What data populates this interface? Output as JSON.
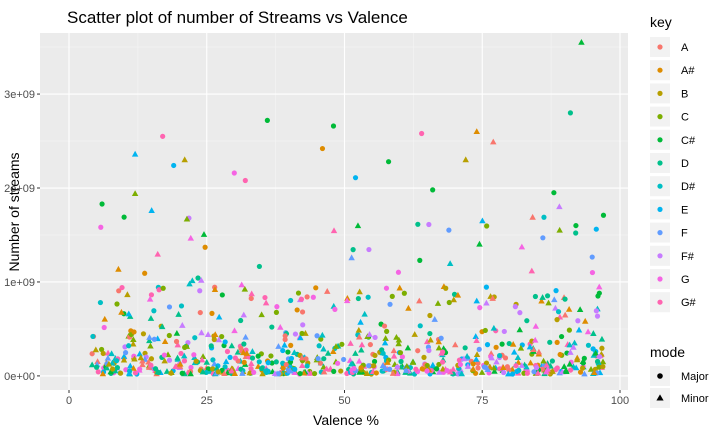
{
  "chart_data": {
    "type": "scatter",
    "title": "Scatter plot of number of Streams vs Valence",
    "xlabel": "Valence %",
    "ylabel": "Number of streams",
    "xlim": [
      0,
      100
    ],
    "ylim": [
      -150000000,
      3650000000
    ],
    "x_ticks": [
      0,
      25,
      50,
      75,
      100
    ],
    "x_tick_labels": [
      "0",
      "25",
      "50",
      "75",
      "100"
    ],
    "y_ticks": [
      0,
      1000000000,
      2000000000,
      3000000000
    ],
    "y_tick_labels": [
      "0e+00",
      "1e+09",
      "2e+09",
      "3e+09"
    ],
    "grid": true,
    "panel_background": "#ebebeb",
    "legend_position": "right",
    "color_legend": {
      "title": "key",
      "entries": [
        {
          "label": "A",
          "color": "#F8766D"
        },
        {
          "label": "A#",
          "color": "#DE8C00"
        },
        {
          "label": "B",
          "color": "#B79F00"
        },
        {
          "label": "C",
          "color": "#7CAE00"
        },
        {
          "label": "C#",
          "color": "#00BA38"
        },
        {
          "label": "D",
          "color": "#00C08B"
        },
        {
          "label": "D#",
          "color": "#00BFC4"
        },
        {
          "label": "E",
          "color": "#00B4F0"
        },
        {
          "label": "F",
          "color": "#619CFF"
        },
        {
          "label": "F#",
          "color": "#C77CFF"
        },
        {
          "label": "G",
          "color": "#F564E3"
        },
        {
          "label": "G#",
          "color": "#FF64B0"
        }
      ]
    },
    "shape_legend": {
      "title": "mode",
      "entries": [
        {
          "label": "Major",
          "shape": "circle"
        },
        {
          "label": "Minor",
          "shape": "triangle"
        }
      ]
    },
    "notable_points": [
      {
        "x": 93,
        "y": 3550000000,
        "key": "C#",
        "mode": "Minor"
      },
      {
        "x": 36,
        "y": 2720000000,
        "key": "C#",
        "mode": "Major"
      },
      {
        "x": 48,
        "y": 2660000000,
        "key": "C#",
        "mode": "Major"
      },
      {
        "x": 91,
        "y": 2800000000,
        "key": "D",
        "mode": "Major"
      },
      {
        "x": 74,
        "y": 2600000000,
        "key": "A#",
        "mode": "Minor"
      },
      {
        "x": 64,
        "y": 2580000000,
        "key": "G#",
        "mode": "Major"
      },
      {
        "x": 17,
        "y": 2550000000,
        "key": "G#",
        "mode": "Major"
      },
      {
        "x": 77,
        "y": 2490000000,
        "key": "A",
        "mode": "Minor"
      },
      {
        "x": 46,
        "y": 2420000000,
        "key": "A#",
        "mode": "Major"
      },
      {
        "x": 12,
        "y": 2360000000,
        "key": "E",
        "mode": "Minor"
      },
      {
        "x": 21,
        "y": 2300000000,
        "key": "B",
        "mode": "Minor"
      },
      {
        "x": 72,
        "y": 2300000000,
        "key": "B",
        "mode": "Minor"
      },
      {
        "x": 58,
        "y": 2280000000,
        "key": "C#",
        "mode": "Major"
      },
      {
        "x": 19,
        "y": 2240000000,
        "key": "E",
        "mode": "Major"
      },
      {
        "x": 30,
        "y": 2160000000,
        "key": "G",
        "mode": "Major"
      },
      {
        "x": 52,
        "y": 2110000000,
        "key": "E",
        "mode": "Major"
      },
      {
        "x": 32,
        "y": 2080000000,
        "key": "G#",
        "mode": "Major"
      },
      {
        "x": 66,
        "y": 1980000000,
        "key": "C#",
        "mode": "Major"
      },
      {
        "x": 88,
        "y": 1950000000,
        "key": "C#",
        "mode": "Major"
      },
      {
        "x": 12,
        "y": 1940000000,
        "key": "C",
        "mode": "Minor"
      },
      {
        "x": 6,
        "y": 1830000000,
        "key": "C#",
        "mode": "Major"
      },
      {
        "x": 89,
        "y": 1800000000,
        "key": "F#",
        "mode": "Minor"
      },
      {
        "x": 97,
        "y": 1710000000,
        "key": "C#",
        "mode": "Major"
      },
      {
        "x": 10,
        "y": 1690000000,
        "key": "C#",
        "mode": "Major"
      },
      {
        "x": 15,
        "y": 1760000000,
        "key": "E",
        "mode": "Minor"
      },
      {
        "x": 92,
        "y": 1600000000,
        "key": "C#",
        "mode": "Major"
      },
      {
        "x": 86,
        "y": 1470000000,
        "key": "F",
        "mode": "Major"
      },
      {
        "x": 95,
        "y": 1100000000,
        "key": "G",
        "mode": "Major"
      },
      {
        "x": 96,
        "y": 850000000,
        "key": "C#",
        "mode": "Major"
      }
    ],
    "bulk_distribution": "Several hundred points spanning valence 4–97%, mostly concentrated between 0 and 1e+09 streams, densest below 5e+08."
  }
}
